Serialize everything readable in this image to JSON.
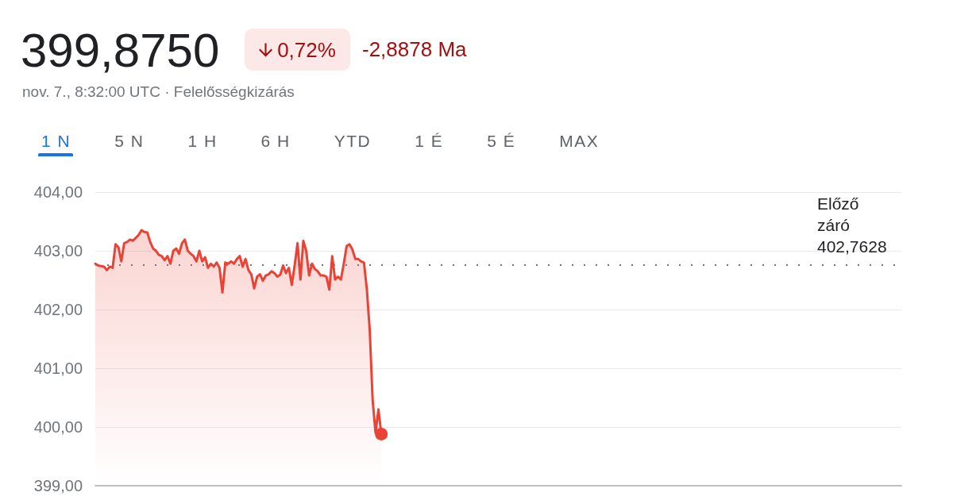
{
  "chart_data": {
    "type": "area",
    "title": "399,8750",
    "subtitle": "nov. 7., 8:32:00 UTC · Felelősségkizárás",
    "annotations": [
      "0,72%",
      "-2,8878 Ma",
      "1 N",
      "5 N",
      "1 H",
      "6 H",
      "YTD",
      "1 É",
      "5 É",
      "MAX"
    ],
    "categories": [
      null,
      null,
      null,
      null,
      null,
      null,
      null,
      null,
      null,
      null,
      null,
      null,
      null,
      null,
      null,
      null,
      null,
      null,
      null,
      null,
      null,
      null,
      null,
      null,
      null,
      null,
      null,
      null,
      null,
      null,
      null,
      null,
      null,
      null,
      null,
      null,
      null,
      null,
      null,
      null,
      null,
      null,
      null,
      null,
      null,
      null,
      null,
      null,
      null,
      null,
      null,
      null,
      null,
      null,
      null,
      null,
      null,
      null,
      null,
      null,
      null,
      null,
      null,
      null,
      null,
      null,
      null,
      null,
      null,
      null,
      null,
      null,
      null,
      null,
      null,
      null,
      null,
      null,
      null,
      null,
      null,
      null,
      null,
      null,
      null,
      null,
      null,
      null,
      null,
      null,
      null,
      null,
      null,
      null,
      null,
      null,
      null,
      null,
      null,
      null,
      null,
      null,
      null,
      null,
      null,
      null,
      null,
      null,
      null,
      null,
      null,
      null,
      null,
      null,
      null,
      null,
      null,
      null,
      null,
      null,
      null,
      null,
      null,
      null,
      null,
      null,
      null,
      null,
      null,
      null,
      null,
      null,
      null,
      null,
      null,
      null,
      null,
      null,
      null,
      null,
      null,
      null,
      null,
      null,
      null,
      null,
      null,
      null,
      null,
      null,
      null,
      null,
      null,
      null,
      null,
      null,
      null,
      null,
      null,
      null,
      null,
      null,
      null,
      null,
      null,
      null,
      null,
      null,
      null,
      null,
      null,
      null,
      null,
      null,
      null,
      null,
      null,
      null,
      null,
      null,
      null,
      null,
      null,
      null,
      null,
      null,
      null,
      null,
      null,
      null,
      null,
      null,
      null,
      null,
      null,
      null,
      null,
      null,
      null,
      null,
      null,
      null,
      null,
      null,
      null,
      null,
      null,
      null,
      null,
      null,
      null,
      null,
      null,
      null,
      null,
      null,
      null,
      null,
      null,
      null,
      null,
      null,
      null,
      null,
      null,
      null,
      null,
      null,
      null,
      null,
      null,
      null,
      null,
      null,
      null,
      null,
      null,
      null,
      null,
      null,
      null,
      null,
      null,
      null,
      null,
      null,
      null,
      null,
      null,
      null,
      null,
      null,
      null,
      null,
      null,
      null,
      null,
      null,
      null,
      null,
      null,
      null,
      null,
      null,
      null,
      null,
      null,
      null,
      null,
      null,
      null,
      null,
      null,
      null,
      null,
      null,
      null,
      null,
      null,
      null
    ],
    "values": [
      402.78,
      402.75,
      402.74,
      402.73,
      402.67,
      402.73,
      402.71,
      403.11,
      403.06,
      402.82,
      403.13,
      403.15,
      403.19,
      403.17,
      403.22,
      403.27,
      403.35,
      403.32,
      403.31,
      403.15,
      403.04,
      403.0,
      402.93,
      402.91,
      402.84,
      402.91,
      402.78,
      403.0,
      403.04,
      402.95,
      403.13,
      403.19,
      403.0,
      402.95,
      402.91,
      402.82,
      403.0,
      402.82,
      402.89,
      402.71,
      402.78,
      402.73,
      402.8,
      402.71,
      402.29,
      402.8,
      402.78,
      402.82,
      402.78,
      402.86,
      402.91,
      402.73,
      402.86,
      402.67,
      402.6,
      402.36,
      402.56,
      402.6,
      402.49,
      402.58,
      402.6,
      402.65,
      402.62,
      402.56,
      402.59,
      402.75,
      402.62,
      402.71,
      402.42,
      402.75,
      403.13,
      402.51,
      403.17,
      403.0,
      402.58,
      402.78,
      402.69,
      402.65,
      402.58,
      402.58,
      402.56,
      402.34,
      402.91,
      402.51,
      402.56,
      402.51,
      402.78,
      403.08,
      403.11,
      403.02,
      402.86,
      402.86,
      402.82,
      402.8,
      402.34,
      401.64,
      400.45,
      399.9,
      400.3,
      399.88,
      null,
      null,
      null,
      null,
      null,
      null,
      null,
      null,
      null,
      null,
      null,
      null,
      null,
      null,
      null,
      null,
      null,
      null,
      null,
      null,
      null,
      null,
      null,
      null,
      null,
      null,
      null,
      null,
      null,
      null,
      null,
      null,
      null,
      null,
      null,
      null,
      null,
      null,
      null,
      null,
      null,
      null,
      null,
      null,
      null,
      null,
      null,
      null,
      null,
      null,
      null,
      null,
      null,
      null,
      null,
      null,
      null,
      null,
      null,
      null,
      null,
      null,
      null,
      null,
      null,
      null,
      null,
      null,
      null,
      null,
      null,
      null,
      null,
      null,
      null,
      null,
      null,
      null,
      null,
      null,
      null,
      null,
      null,
      null,
      null,
      null,
      null,
      null,
      null,
      null,
      null,
      null,
      null,
      null,
      null,
      null,
      null,
      null,
      null,
      null,
      null,
      null,
      null,
      null,
      null,
      null,
      null,
      null,
      null,
      null,
      null,
      null,
      null,
      null,
      null,
      null,
      null,
      null,
      null,
      null,
      null,
      null,
      null,
      null,
      null,
      null,
      null,
      null,
      null,
      null,
      null,
      null,
      null,
      null,
      null,
      null,
      null,
      null,
      null,
      null,
      null,
      null,
      null,
      null,
      null,
      null,
      null,
      null,
      null,
      null,
      null,
      null,
      null,
      null,
      null,
      null,
      null,
      null,
      null,
      null,
      null,
      null,
      null,
      null,
      null,
      null,
      null,
      null,
      null,
      null,
      null,
      null,
      null,
      null,
      null,
      null,
      null,
      null,
      null,
      null
    ],
    "color": "#ea4335",
    "ylim": [
      399,
      404
    ],
    "yticks": [
      {
        "value": 399,
        "label": "399,00"
      },
      {
        "value": 400,
        "label": "400,00"
      },
      {
        "value": 401,
        "label": "401,00"
      },
      {
        "value": 402,
        "label": "402,00"
      },
      {
        "value": 403,
        "label": "403,00"
      },
      {
        "value": 404,
        "label": "404,00"
      }
    ],
    "grid": "y",
    "tick_labels": "y",
    "ref_lines": [
      {
        "axis": "y",
        "value": 402.7628,
        "label": "Előző záró 402,7628",
        "line_style": "dotted"
      }
    ]
  }
}
